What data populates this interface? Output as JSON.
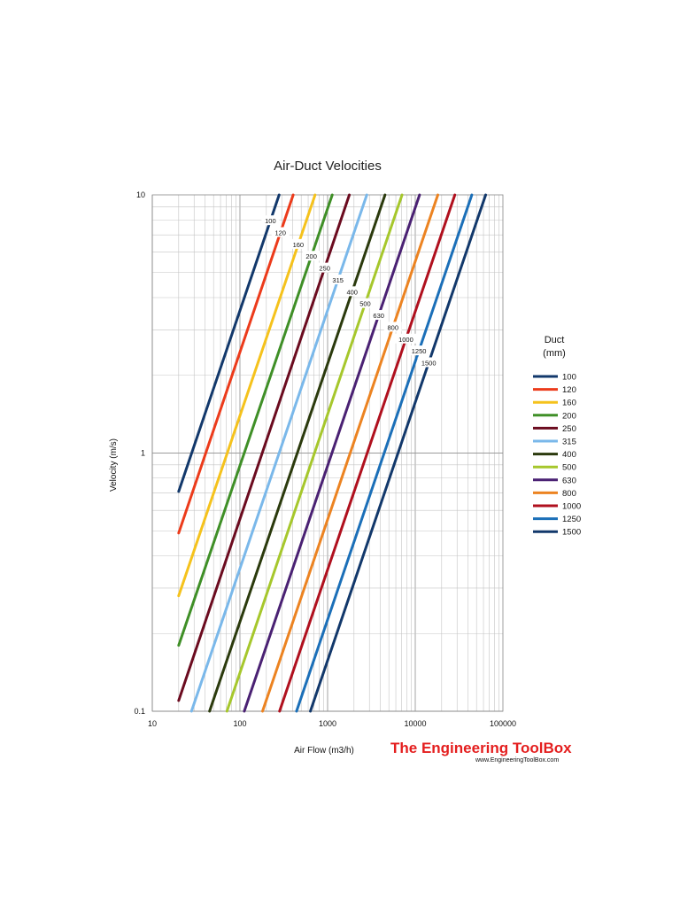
{
  "chart_data": {
    "type": "line",
    "title": "Air-Duct Velocities",
    "xlabel": "Air Flow (m3/h)",
    "ylabel": "Velocity (m/s)",
    "x_scale": "log",
    "y_scale": "log",
    "xlim": [
      10,
      100000
    ],
    "ylim": [
      0.1,
      10
    ],
    "x_ticks": [
      "10",
      "100",
      "1000",
      "10000",
      "100000"
    ],
    "y_ticks": [
      "0.1",
      "1",
      "10"
    ],
    "grid": true,
    "legend_title": [
      "Duct",
      "(mm)"
    ],
    "legend_placement": "right",
    "series": [
      {
        "name": "100",
        "color": "#12386b",
        "x": [
          20,
          280
        ],
        "y": [
          0.71,
          10
        ],
        "label": "100"
      },
      {
        "name": "120",
        "color": "#ec3b1b",
        "x": [
          20,
          405
        ],
        "y": [
          0.49,
          10
        ],
        "label": "120"
      },
      {
        "name": "160",
        "color": "#f5c21c",
        "x": [
          20,
          720
        ],
        "y": [
          0.28,
          10
        ],
        "label": "160"
      },
      {
        "name": "200",
        "color": "#3f8f27",
        "x": [
          20,
          1130
        ],
        "y": [
          0.18,
          10
        ],
        "label": "200"
      },
      {
        "name": "250",
        "color": "#6b0b1f",
        "x": [
          20,
          1770
        ],
        "y": [
          0.11,
          10
        ],
        "label": "250"
      },
      {
        "name": "315",
        "color": "#7ab8ea",
        "x": [
          28,
          2800
        ],
        "y": [
          0.1,
          10
        ],
        "label": "315"
      },
      {
        "name": "400",
        "color": "#2b3a0d",
        "x": [
          45,
          4520
        ],
        "y": [
          0.1,
          10
        ],
        "label": "400"
      },
      {
        "name": "500",
        "color": "#a6c72c",
        "x": [
          71,
          7070
        ],
        "y": [
          0.1,
          10
        ],
        "label": "500"
      },
      {
        "name": "630",
        "color": "#4a2173",
        "x": [
          112,
          11200
        ],
        "y": [
          0.1,
          10
        ],
        "label": "630"
      },
      {
        "name": "800",
        "color": "#ec8321",
        "x": [
          181,
          18100
        ],
        "y": [
          0.1,
          10
        ],
        "label": "800"
      },
      {
        "name": "1000",
        "color": "#b0101e",
        "x": [
          283,
          28300
        ],
        "y": [
          0.1,
          10
        ],
        "label": "1000"
      },
      {
        "name": "1250",
        "color": "#1b6fb8",
        "x": [
          442,
          44200
        ],
        "y": [
          0.1,
          10
        ],
        "label": "1250"
      },
      {
        "name": "1500",
        "color": "#12386b",
        "x": [
          636,
          63600
        ],
        "y": [
          0.1,
          10
        ],
        "label": "1500"
      }
    ]
  },
  "brand": {
    "name": "The Engineering ToolBox",
    "url": "www.EngineeringToolBox.com"
  }
}
